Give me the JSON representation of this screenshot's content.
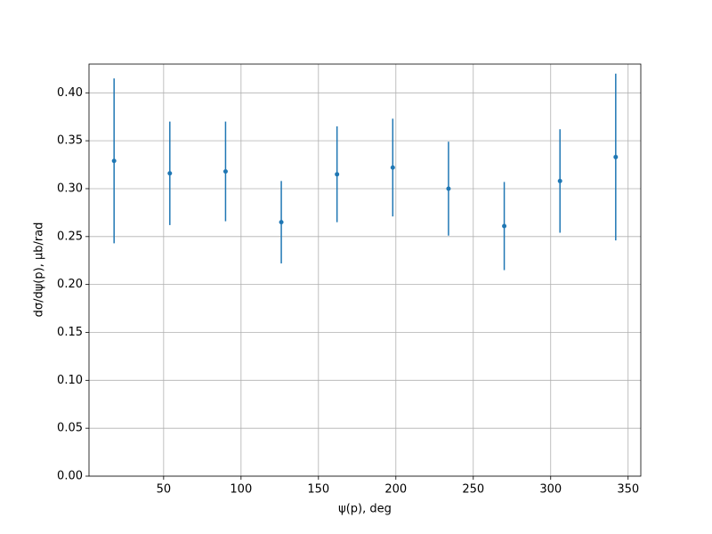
{
  "chart_data": {
    "type": "errorbar",
    "xlabel": "ψ(p), deg",
    "ylabel": "dσ/dψ(p), μb/rad",
    "x": [
      18,
      54,
      90,
      126,
      162,
      198,
      234,
      270,
      306,
      342
    ],
    "values": [
      0.329,
      0.316,
      0.318,
      0.265,
      0.315,
      0.322,
      0.3,
      0.261,
      0.308,
      0.333
    ],
    "errors": [
      0.086,
      0.054,
      0.052,
      0.043,
      0.05,
      0.051,
      0.049,
      0.046,
      0.054,
      0.087
    ],
    "color": "#1f77b4",
    "xlim": [
      1.8,
      358.2
    ],
    "ylim": [
      0,
      0.43
    ],
    "xticks": [
      50,
      100,
      150,
      200,
      250,
      300,
      350
    ],
    "yticks": [
      {
        "value": 0,
        "label": "0.00"
      },
      {
        "value": 0.05,
        "label": "0.05"
      },
      {
        "value": 0.1,
        "label": "0.10"
      },
      {
        "value": 0.15,
        "label": "0.15"
      },
      {
        "value": 0.2,
        "label": "0.20"
      },
      {
        "value": 0.25,
        "label": "0.25"
      },
      {
        "value": 0.3,
        "label": "0.30"
      },
      {
        "value": 0.35,
        "label": "0.35"
      },
      {
        "value": 0.4,
        "label": "0.40"
      }
    ],
    "grid": true
  }
}
